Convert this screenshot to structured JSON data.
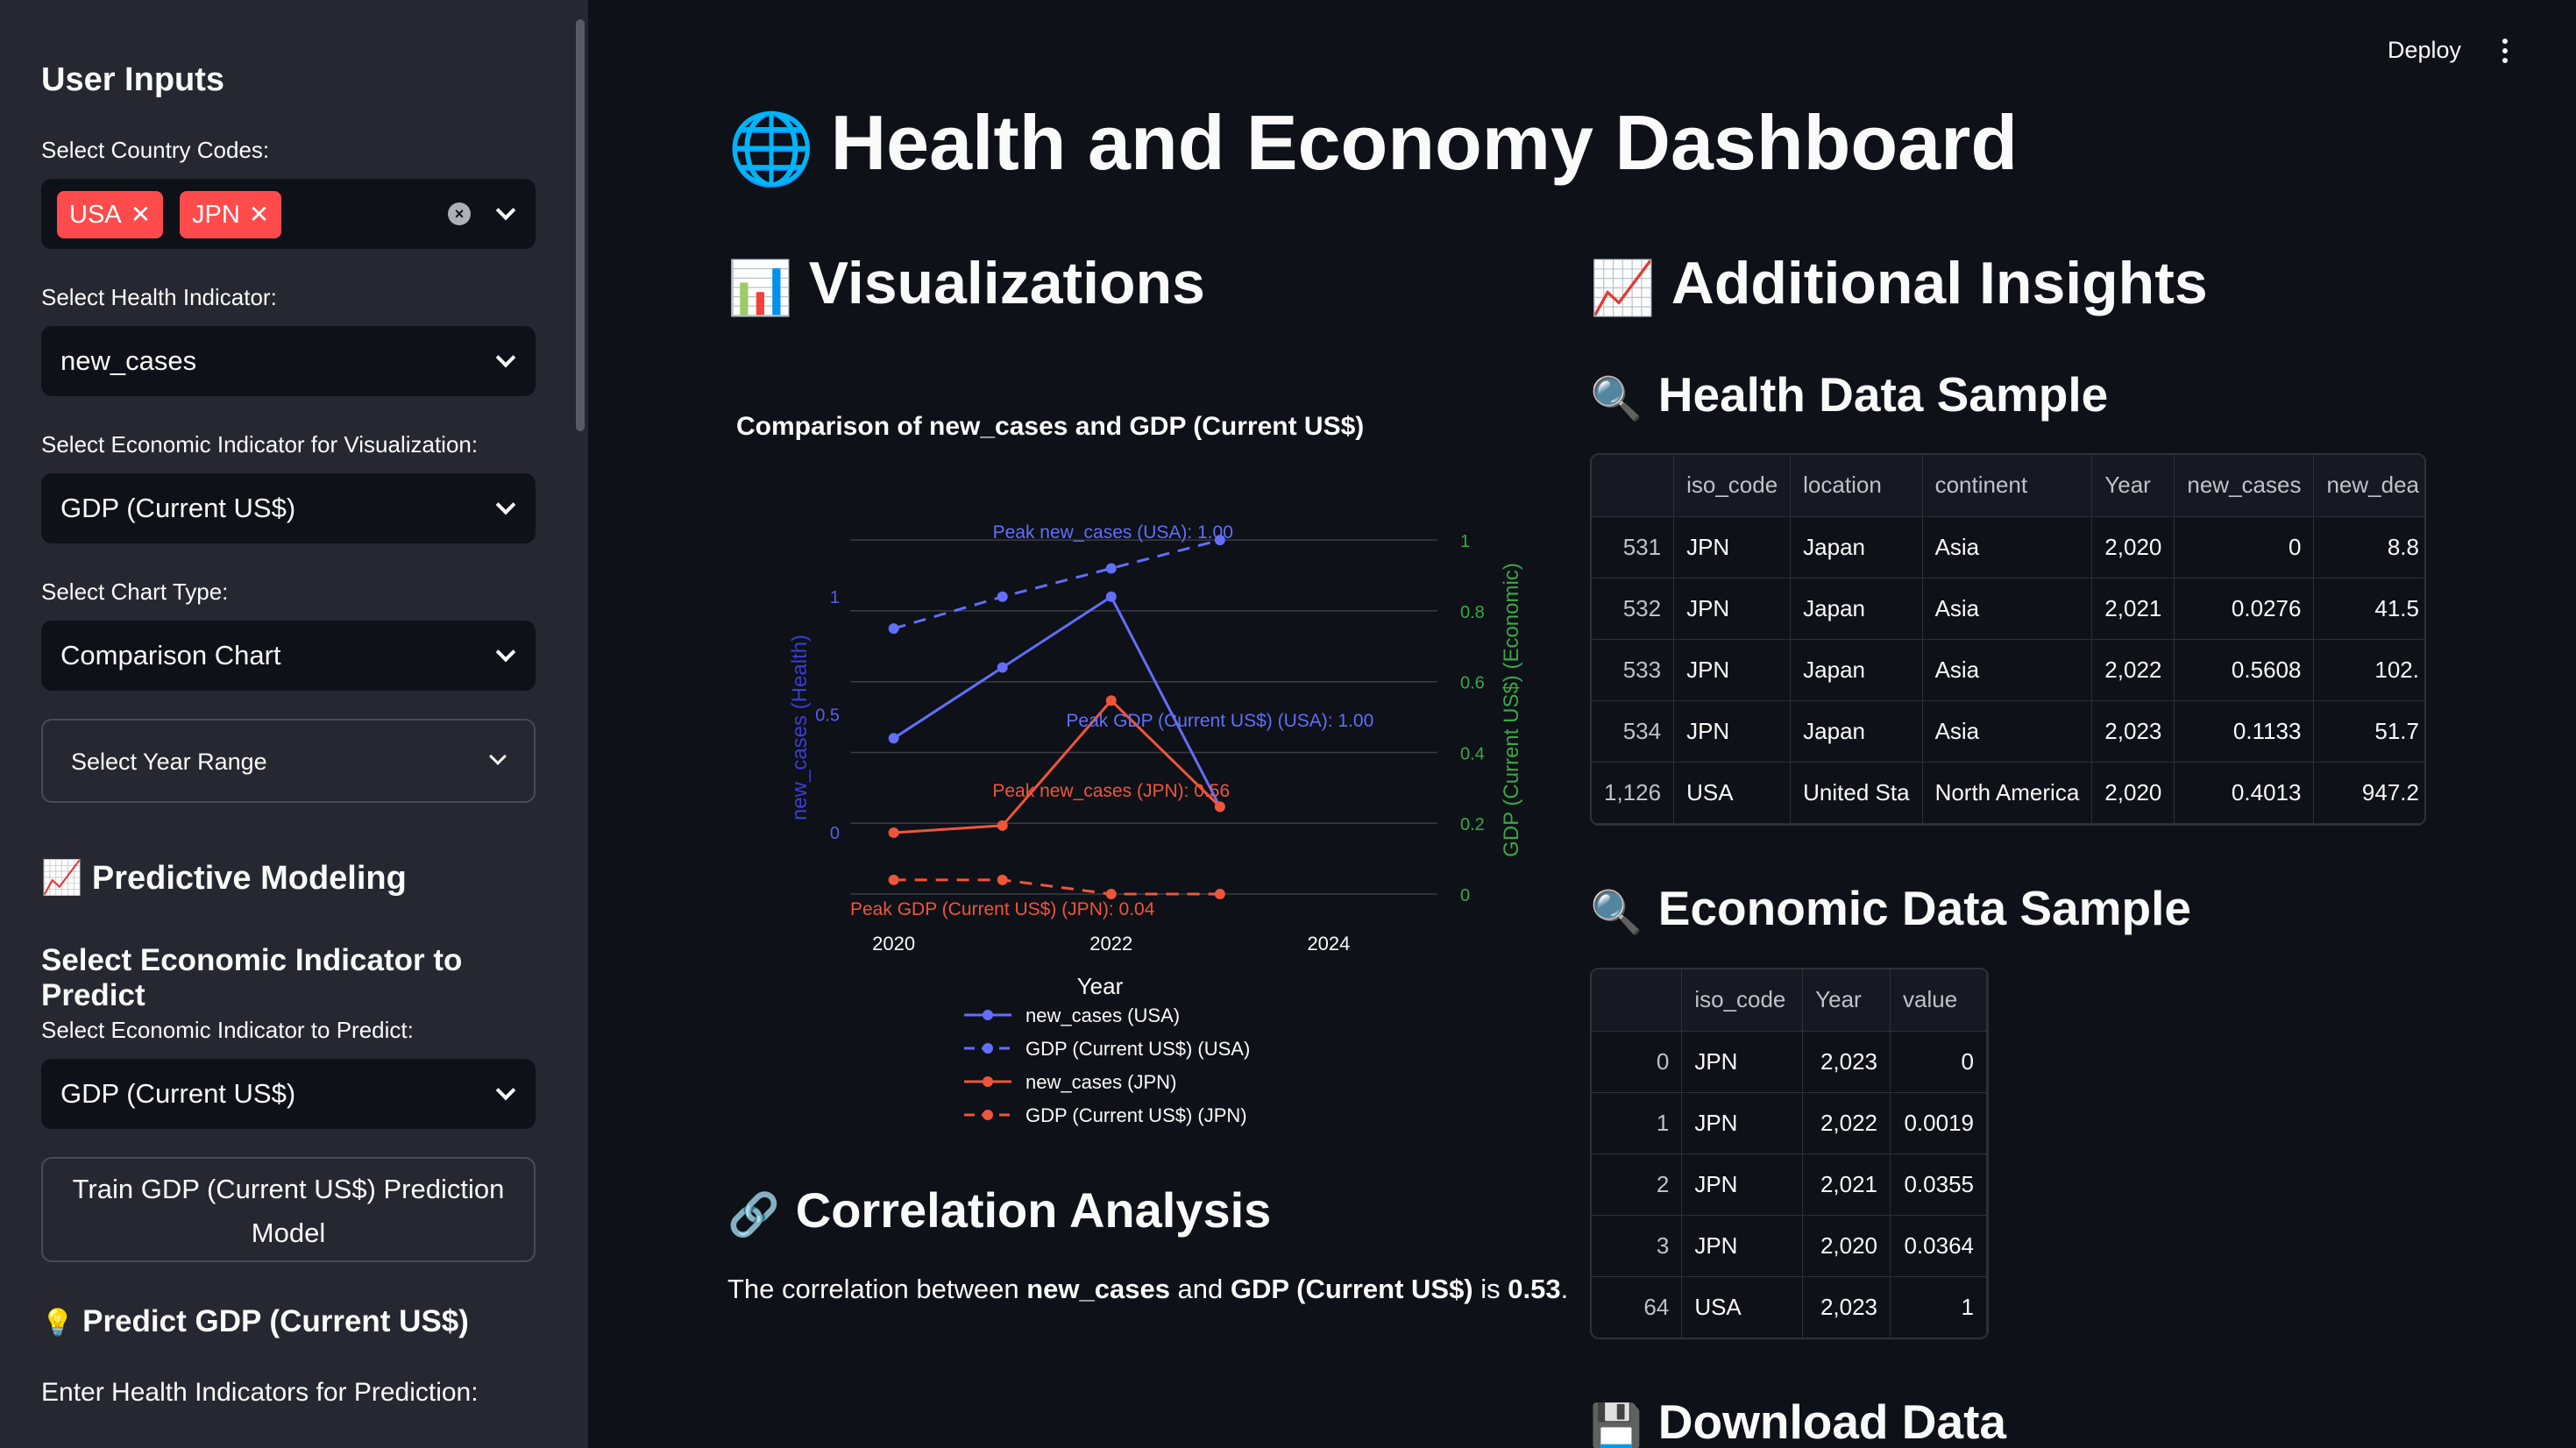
{
  "sidebar": {
    "title": "User Inputs",
    "country_label": "Select Country Codes:",
    "country_tags": [
      "USA",
      "JPN"
    ],
    "health_label": "Select Health Indicator:",
    "health_value": "new_cases",
    "econ_label": "Select Economic Indicator for Visualization:",
    "econ_value": "GDP (Current US$)",
    "chart_type_label": "Select Chart Type:",
    "chart_type_value": "Comparison Chart",
    "year_range_label": "Select Year Range",
    "predictive_title": "Predictive Modeling",
    "predict_subheader": "Select Economic Indicator to Predict",
    "predict_label": "Select Economic Indicator to Predict:",
    "predict_value": "GDP (Current US$)",
    "train_button": "Train GDP (Current US$) Prediction Model",
    "predict_title": "Predict GDP (Current US$)",
    "enter_label": "Enter Health Indicators for Prediction:"
  },
  "header": {
    "deploy": "Deploy"
  },
  "main": {
    "title": "Health and Economy Dashboard",
    "visualizations": "Visualizations",
    "insights": "Additional Insights",
    "health_sample": "Health Data Sample",
    "econ_sample": "Economic Data Sample",
    "correlation": "Correlation Analysis",
    "download": "Download Data",
    "corr_text": {
      "pre": "The correlation between ",
      "a": "new_cases",
      "mid": " and ",
      "b": "GDP (Current US$)",
      "is": " is ",
      "val": "0.53",
      "end": "."
    }
  },
  "health_table": {
    "columns": [
      "",
      "iso_code",
      "location",
      "continent",
      "Year",
      "new_cases",
      "new_dea"
    ],
    "rows": [
      [
        "531",
        "JPN",
        "Japan",
        "Asia",
        "2,020",
        "0",
        "8.8"
      ],
      [
        "532",
        "JPN",
        "Japan",
        "Asia",
        "2,021",
        "0.0276",
        "41.5"
      ],
      [
        "533",
        "JPN",
        "Japan",
        "Asia",
        "2,022",
        "0.5608",
        "102."
      ],
      [
        "534",
        "JPN",
        "Japan",
        "Asia",
        "2,023",
        "0.1133",
        "51.7"
      ],
      [
        "1,126",
        "USA",
        "United Sta",
        "North America",
        "2,020",
        "0.4013",
        "947.2"
      ]
    ]
  },
  "econ_table": {
    "columns": [
      "",
      "iso_code",
      "Year",
      "value"
    ],
    "rows": [
      [
        "0",
        "JPN",
        "2,023",
        "0"
      ],
      [
        "1",
        "JPN",
        "2,022",
        "0.0019"
      ],
      [
        "2",
        "JPN",
        "2,021",
        "0.0355"
      ],
      [
        "3",
        "JPN",
        "2,020",
        "0.0364"
      ],
      [
        "64",
        "USA",
        "2,023",
        "1"
      ]
    ]
  },
  "chart_data": {
    "type": "line",
    "title": "Comparison of new_cases and GDP (Current US$)",
    "xlabel": "Year",
    "ylabel": "new_cases (Health)",
    "y2label": "GDP (Current US$) (Economic)",
    "x_ticks": [
      2020,
      2022,
      2024
    ],
    "y_ticks": [
      0,
      0.5,
      1
    ],
    "y2_ticks": [
      0,
      0.2,
      0.4,
      0.6,
      0.8,
      1
    ],
    "xlim": [
      2019.6,
      2025
    ],
    "ylim": [
      -0.26,
      1.3
    ],
    "y2lim": [
      0,
      1.04
    ],
    "series": [
      {
        "name": "new_cases (USA)",
        "axis": "y",
        "dash": false,
        "color": "#636efa",
        "x": [
          2020,
          2021,
          2022,
          2023
        ],
        "values": [
          0.4,
          0.7,
          1.0,
          0.11
        ]
      },
      {
        "name": "GDP (Current US$) (USA)",
        "axis": "y2",
        "dash": true,
        "color": "#636efa",
        "x": [
          2020,
          2021,
          2022,
          2023
        ],
        "values": [
          0.75,
          0.84,
          0.92,
          1.0
        ]
      },
      {
        "name": "new_cases (JPN)",
        "axis": "y",
        "dash": false,
        "color": "#ef553b",
        "x": [
          2020,
          2021,
          2022,
          2023
        ],
        "values": [
          0,
          0.03,
          0.56,
          0.11
        ]
      },
      {
        "name": "GDP (Current US$) (JPN)",
        "axis": "y2",
        "dash": true,
        "color": "#ef553b",
        "x": [
          2020,
          2021,
          2022,
          2023
        ],
        "values": [
          0.04,
          0.04,
          0.0,
          0.0
        ]
      }
    ],
    "annotations": [
      {
        "text": "Peak new_cases (USA): 1.00",
        "color": "#636efa"
      },
      {
        "text": "Peak new_cases (JPN): 0.56",
        "color": "#ef553b"
      },
      {
        "text": "Peak GDP (Current US$) (USA): 1.00",
        "color": "#636efa"
      },
      {
        "text": "Peak GDP (Current US$) (JPN): 0.04",
        "color": "#ef553b"
      }
    ],
    "legend_position": "bottom"
  }
}
